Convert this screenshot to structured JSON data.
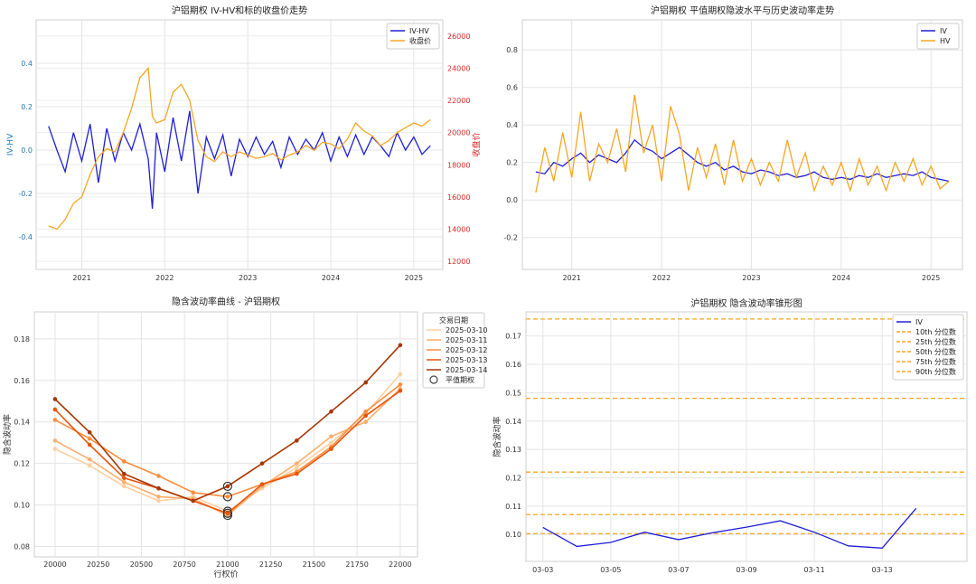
{
  "chart_data": [
    {
      "type": "line",
      "title": "沪铝期权 IV-HV和标的收盘价走势",
      "ylabel": "IV-HV",
      "y2label": "收盘价",
      "x_ticks": [
        "2021",
        "2022",
        "2023",
        "2024",
        "2025"
      ],
      "ylim": [
        -0.55,
        0.6
      ],
      "y_ticks": [
        "-0.4",
        "-0.2",
        "0.0",
        "0.2",
        "0.4"
      ],
      "y2lim": [
        11500,
        27000
      ],
      "y2_ticks": [
        "12000",
        "14000",
        "16000",
        "18000",
        "20000",
        "22000",
        "24000",
        "26000"
      ],
      "legend": "top-right",
      "series": [
        {
          "name": "IV-HV",
          "axis": "left",
          "color": "#1f1fd6",
          "x": [
            2020.6,
            2020.7,
            2020.8,
            2020.9,
            2021.0,
            2021.1,
            2021.2,
            2021.3,
            2021.4,
            2021.5,
            2021.6,
            2021.7,
            2021.8,
            2021.85,
            2021.9,
            2022.0,
            2022.1,
            2022.2,
            2022.3,
            2022.4,
            2022.5,
            2022.6,
            2022.7,
            2022.8,
            2022.9,
            2023.0,
            2023.1,
            2023.2,
            2023.3,
            2023.4,
            2023.5,
            2023.6,
            2023.7,
            2023.8,
            2023.9,
            2024.0,
            2024.1,
            2024.2,
            2024.3,
            2024.4,
            2024.5,
            2024.6,
            2024.7,
            2024.8,
            2024.9,
            2025.0,
            2025.1,
            2025.2
          ],
          "values": [
            0.11,
            0.0,
            -0.1,
            0.08,
            -0.05,
            0.12,
            -0.15,
            0.1,
            -0.05,
            0.08,
            0.0,
            0.12,
            -0.04,
            -0.27,
            0.08,
            -0.1,
            0.15,
            -0.05,
            0.18,
            -0.2,
            0.06,
            -0.04,
            0.07,
            -0.12,
            0.05,
            -0.03,
            0.06,
            -0.02,
            0.04,
            -0.08,
            0.06,
            -0.02,
            0.05,
            0.0,
            0.08,
            -0.05,
            0.06,
            -0.03,
            0.07,
            -0.02,
            0.06,
            0.02,
            -0.03,
            0.08,
            0.0,
            0.06,
            -0.02,
            0.02
          ]
        },
        {
          "name": "收盘价",
          "axis": "right",
          "color": "#f5a623",
          "x": [
            2020.6,
            2020.7,
            2020.8,
            2020.9,
            2021.0,
            2021.1,
            2021.2,
            2021.3,
            2021.4,
            2021.5,
            2021.6,
            2021.7,
            2021.8,
            2021.85,
            2021.9,
            2022.0,
            2022.1,
            2022.2,
            2022.3,
            2022.4,
            2022.5,
            2022.6,
            2022.7,
            2022.8,
            2022.9,
            2023.0,
            2023.1,
            2023.2,
            2023.3,
            2023.4,
            2023.5,
            2023.6,
            2023.7,
            2023.8,
            2023.9,
            2024.0,
            2024.1,
            2024.2,
            2024.3,
            2024.4,
            2024.5,
            2024.6,
            2024.7,
            2024.8,
            2024.9,
            2025.0,
            2025.1,
            2025.2
          ],
          "values": [
            14200,
            14000,
            14600,
            15600,
            16000,
            17400,
            18500,
            19000,
            18800,
            20000,
            21500,
            23400,
            24000,
            21000,
            20600,
            20800,
            22500,
            23000,
            22000,
            19500,
            18500,
            18200,
            18800,
            18500,
            18800,
            18600,
            18400,
            18500,
            18700,
            18300,
            18600,
            18800,
            19200,
            18900,
            19400,
            19300,
            19000,
            19600,
            20600,
            20100,
            19800,
            19200,
            19500,
            20000,
            20300,
            20600,
            20400,
            20800
          ]
        }
      ]
    },
    {
      "type": "line",
      "title": "沪铝期权 平值期权隐波水平与历史波动率走势",
      "x_ticks": [
        "2021",
        "2022",
        "2023",
        "2024",
        "2025"
      ],
      "ylim": [
        -0.37,
        0.96
      ],
      "y_ticks": [
        "-0.2",
        "0.0",
        "0.2",
        "0.4",
        "0.6",
        "0.8"
      ],
      "legend": "top-right",
      "series": [
        {
          "name": "IV",
          "color": "#1f1fd6",
          "x": [
            2020.6,
            2020.7,
            2020.8,
            2020.9,
            2021.0,
            2021.1,
            2021.2,
            2021.3,
            2021.4,
            2021.5,
            2021.6,
            2021.7,
            2021.8,
            2021.9,
            2022.0,
            2022.1,
            2022.2,
            2022.3,
            2022.4,
            2022.5,
            2022.6,
            2022.7,
            2022.8,
            2022.9,
            2023.0,
            2023.1,
            2023.2,
            2023.3,
            2023.4,
            2023.5,
            2023.6,
            2023.7,
            2023.8,
            2023.9,
            2024.0,
            2024.1,
            2024.2,
            2024.3,
            2024.4,
            2024.5,
            2024.6,
            2024.7,
            2024.8,
            2024.9,
            2025.0,
            2025.1,
            2025.2
          ],
          "values": [
            0.15,
            0.14,
            0.2,
            0.18,
            0.22,
            0.25,
            0.2,
            0.24,
            0.22,
            0.2,
            0.25,
            0.32,
            0.28,
            0.26,
            0.22,
            0.25,
            0.28,
            0.24,
            0.2,
            0.18,
            0.2,
            0.16,
            0.18,
            0.15,
            0.14,
            0.16,
            0.15,
            0.13,
            0.14,
            0.12,
            0.13,
            0.15,
            0.12,
            0.11,
            0.12,
            0.11,
            0.13,
            0.12,
            0.14,
            0.12,
            0.13,
            0.14,
            0.13,
            0.15,
            0.12,
            0.11,
            0.1
          ]
        },
        {
          "name": "HV",
          "color": "#f5a623",
          "x": [
            2020.6,
            2020.7,
            2020.8,
            2020.9,
            2021.0,
            2021.1,
            2021.2,
            2021.3,
            2021.4,
            2021.5,
            2021.6,
            2021.7,
            2021.8,
            2021.9,
            2022.0,
            2022.1,
            2022.2,
            2022.3,
            2022.4,
            2022.5,
            2022.6,
            2022.7,
            2022.8,
            2022.9,
            2023.0,
            2023.1,
            2023.2,
            2023.3,
            2023.4,
            2023.5,
            2023.6,
            2023.7,
            2023.8,
            2023.9,
            2024.0,
            2024.1,
            2024.2,
            2024.3,
            2024.4,
            2024.5,
            2024.6,
            2024.7,
            2024.8,
            2024.9,
            2025.0,
            2025.1,
            2025.2
          ],
          "values": [
            0.04,
            0.28,
            0.1,
            0.36,
            0.12,
            0.47,
            0.1,
            0.3,
            0.2,
            0.38,
            0.15,
            0.56,
            0.25,
            0.4,
            0.1,
            0.5,
            0.35,
            0.05,
            0.28,
            0.12,
            0.3,
            0.08,
            0.32,
            0.1,
            0.22,
            0.08,
            0.2,
            0.1,
            0.32,
            0.12,
            0.25,
            0.05,
            0.18,
            0.08,
            0.2,
            0.05,
            0.22,
            0.08,
            0.18,
            0.05,
            0.2,
            0.1,
            0.22,
            0.08,
            0.18,
            0.06,
            0.1
          ]
        }
      ]
    },
    {
      "type": "line",
      "title": "隐含波动率曲线 - 沪铝期权",
      "xlabel": "行权价",
      "ylabel": "隐含波动率",
      "xlim": [
        19880,
        22100
      ],
      "ylim": [
        0.075,
        0.193
      ],
      "x_ticks": [
        "20000",
        "20250",
        "20500",
        "20750",
        "21000",
        "21250",
        "21500",
        "21750",
        "22000"
      ],
      "y_ticks": [
        "0.08",
        "0.10",
        "0.12",
        "0.14",
        "0.16",
        "0.18"
      ],
      "legend_title": "交易日期",
      "legend": "outside-right",
      "atm_label": "平值期权",
      "atm_strike": 21000,
      "strikes": [
        20000,
        20200,
        20400,
        20600,
        20800,
        21000,
        21200,
        21400,
        21600,
        21800,
        22000
      ],
      "series": [
        {
          "name": "2025-03-10",
          "color": "#fdd0a2",
          "values": [
            0.127,
            0.119,
            0.109,
            0.102,
            0.104,
            0.097,
            0.108,
            0.118,
            0.13,
            0.144,
            0.163
          ]
        },
        {
          "name": "2025-03-11",
          "color": "#fdae6b",
          "values": [
            0.131,
            0.122,
            0.111,
            0.104,
            0.103,
            0.095,
            0.109,
            0.12,
            0.133,
            0.14,
            0.156
          ]
        },
        {
          "name": "2025-03-12",
          "color": "#fd8d3c",
          "values": [
            0.141,
            0.132,
            0.121,
            0.114,
            0.106,
            0.104,
            0.11,
            0.116,
            0.128,
            0.145,
            0.158
          ]
        },
        {
          "name": "2025-03-13",
          "color": "#e6550d",
          "values": [
            0.146,
            0.129,
            0.113,
            0.108,
            0.102,
            0.096,
            0.11,
            0.115,
            0.127,
            0.143,
            0.155
          ]
        },
        {
          "name": "2025-03-14",
          "color": "#a63603",
          "values": [
            0.151,
            0.135,
            0.115,
            0.108,
            0.102,
            0.109,
            0.12,
            0.131,
            0.145,
            0.159,
            0.177
          ]
        }
      ]
    },
    {
      "type": "line",
      "title": "沪铝期权 隐含波动率锥形图",
      "ylabel": "隐含波动率",
      "x_ticks": [
        "03-03",
        "03-05",
        "03-07",
        "03-09",
        "03-11",
        "03-13"
      ],
      "xlim": [
        0,
        12
      ],
      "ylim": [
        0.0905,
        0.1785
      ],
      "y_ticks": [
        "0.10",
        "0.11",
        "0.12",
        "0.13",
        "0.14",
        "0.15",
        "0.16",
        "0.17"
      ],
      "legend": "top-right",
      "series": [
        {
          "name": "IV",
          "color": "#1f1fd6",
          "x": [
            0,
            1,
            2,
            3,
            4,
            5,
            6,
            7,
            8,
            9,
            10,
            11
          ],
          "values": [
            0.1025,
            0.0958,
            0.0972,
            0.1008,
            0.0982,
            0.1006,
            0.1026,
            0.1048,
            0.1008,
            0.096,
            0.0952,
            0.1092
          ]
        }
      ],
      "percentiles": [
        {
          "name": "10th 分位数",
          "value": 0.1003
        },
        {
          "name": "25th 分位数",
          "value": 0.107
        },
        {
          "name": "50th 分位数",
          "value": 0.122
        },
        {
          "name": "75th 分位数",
          "value": 0.148
        },
        {
          "name": "90th 分位数",
          "value": 0.176
        }
      ],
      "percentile_color": "#f5a623"
    }
  ]
}
